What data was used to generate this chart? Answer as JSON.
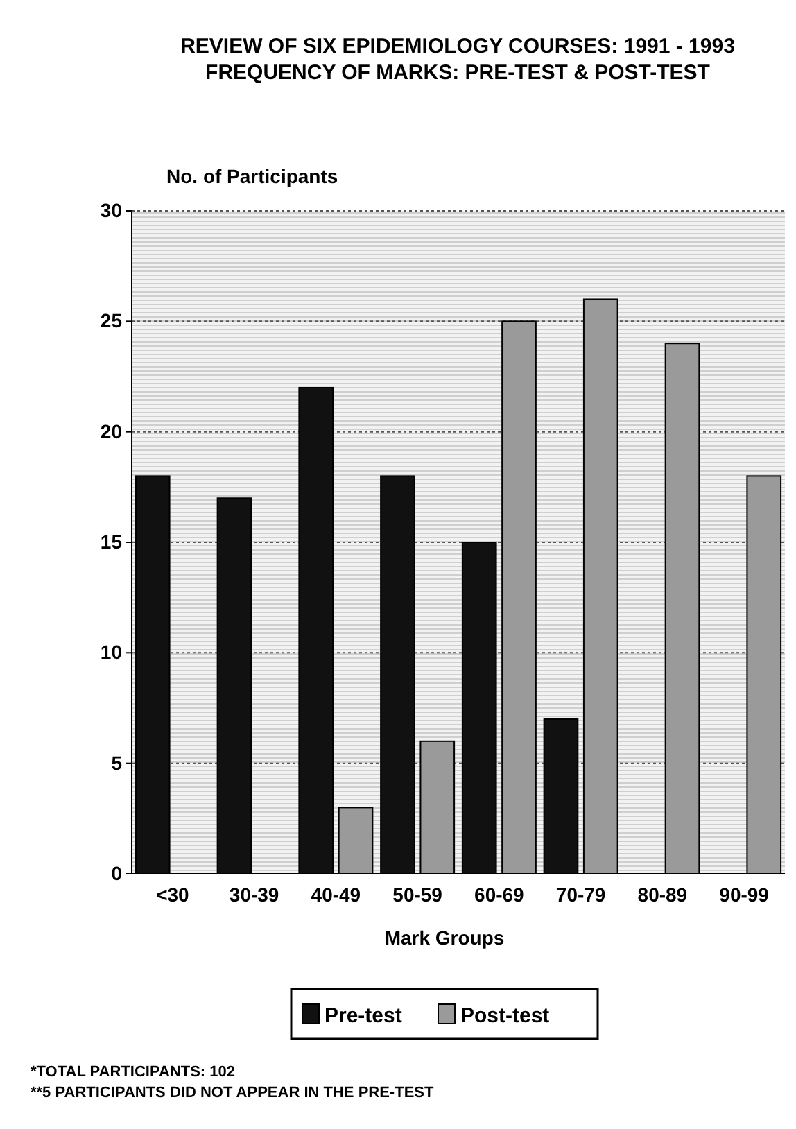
{
  "chart_data": {
    "type": "bar",
    "title": "REVIEW OF SIX EPIDEMIOLOGY COURSES: 1991 - 1993",
    "subtitle": "FREQUENCY OF MARKS: PRE-TEST & POST-TEST",
    "xlabel": "Mark Groups",
    "ylabel": "No. of Participants",
    "categories": [
      "<30",
      "30-39",
      "40-49",
      "50-59",
      "60-69",
      "70-79",
      "80-89",
      "90-99"
    ],
    "series": [
      {
        "name": "Pre-test",
        "color": "#111111",
        "values": [
          18,
          17,
          22,
          18,
          15,
          7,
          0,
          0
        ]
      },
      {
        "name": "Post-test",
        "color": "#9a9a9a",
        "values": [
          0,
          0,
          3,
          6,
          25,
          26,
          24,
          18
        ]
      }
    ],
    "ylim": [
      0,
      30
    ],
    "yticks": [
      0,
      5,
      10,
      15,
      20,
      25,
      30
    ],
    "grid": "y",
    "legend": "bottom",
    "annotations": [
      "*TOTAL PARTICIPANTS: 102",
      "**5 PARTICIPANTS DID NOT APPEAR IN THE PRE-TEST"
    ]
  }
}
